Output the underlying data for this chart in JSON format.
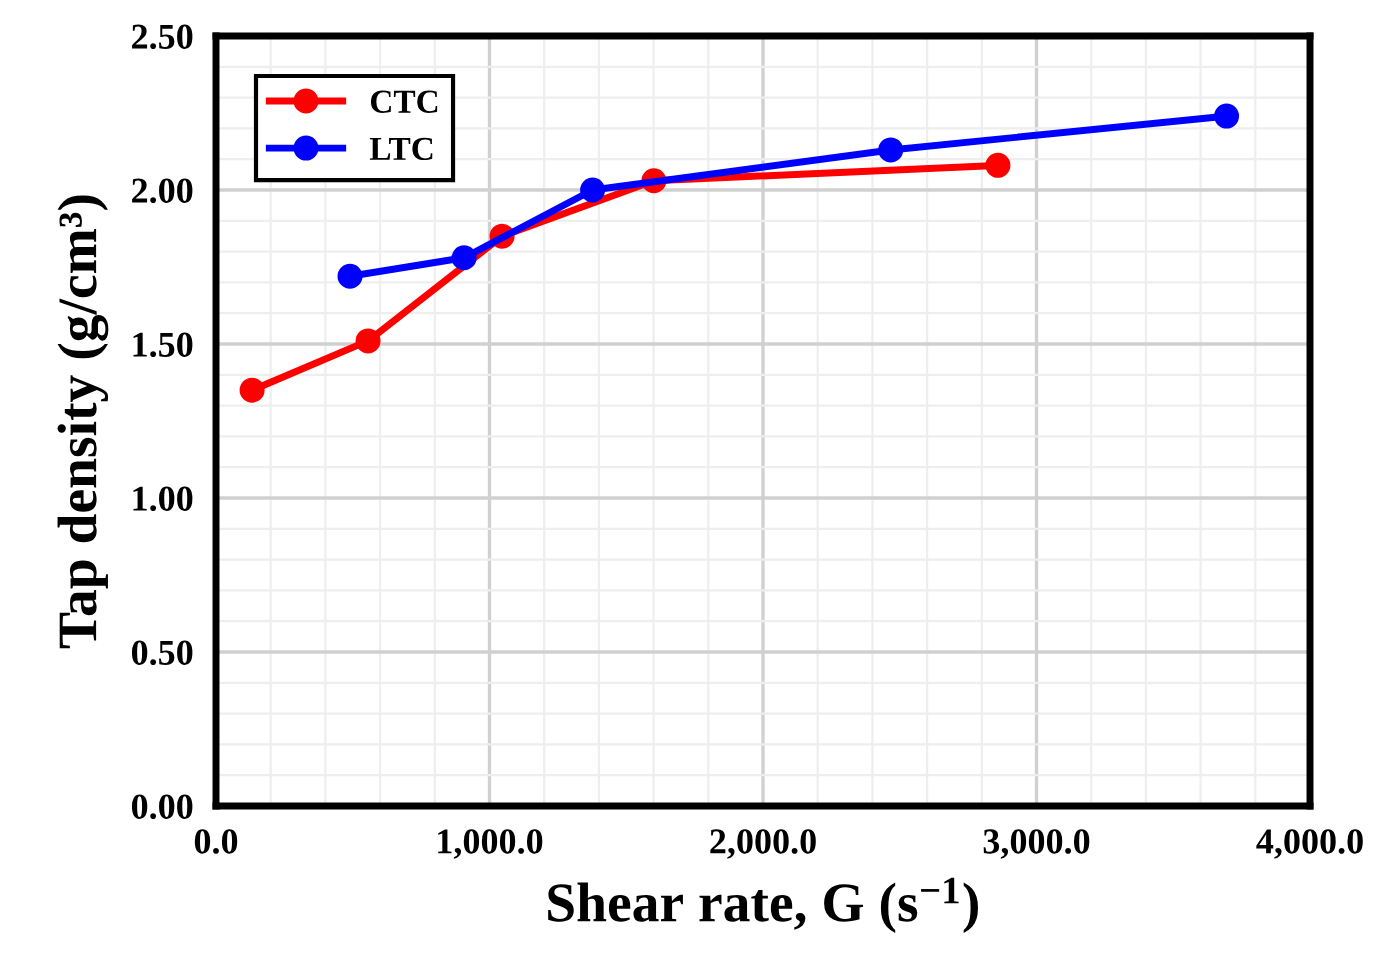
{
  "chart_data": {
    "type": "line",
    "xlabel": "Shear rate, G (s$^{−1}$)",
    "ylabel": "Tap density (g/cm³)",
    "series": [
      {
        "name": "CTC",
        "color": "#ff0000",
        "x": [
          132,
          556,
          1046,
          1601,
          2859
        ],
        "values": [
          1.35,
          1.51,
          1.85,
          2.03,
          2.08
        ]
      },
      {
        "name": "LTC",
        "color": "#0000ff",
        "x": [
          490,
          907,
          1377,
          2467,
          3695
        ],
        "values": [
          1.72,
          1.78,
          2.0,
          2.13,
          2.24
        ]
      }
    ],
    "xlim": [
      0,
      4000
    ],
    "ylim": [
      0,
      2.5
    ],
    "xticks": [
      {
        "value": 0,
        "label": "0.0"
      },
      {
        "value": 1000,
        "label": "1,000.0"
      },
      {
        "value": 2000,
        "label": "2,000.0"
      },
      {
        "value": 3000,
        "label": "3,000.0"
      },
      {
        "value": 4000,
        "label": "4,000.0"
      }
    ],
    "yticks": [
      {
        "value": 0,
        "label": "0.00"
      },
      {
        "value": 0.5,
        "label": "0.50"
      },
      {
        "value": 1,
        "label": "1.00"
      },
      {
        "value": 1.5,
        "label": "1.50"
      },
      {
        "value": 2,
        "label": "2.00"
      },
      {
        "value": 2.5,
        "label": "2.50"
      }
    ],
    "grid": true,
    "legend": "top left",
    "marker": "circle",
    "line_style": "solid"
  }
}
